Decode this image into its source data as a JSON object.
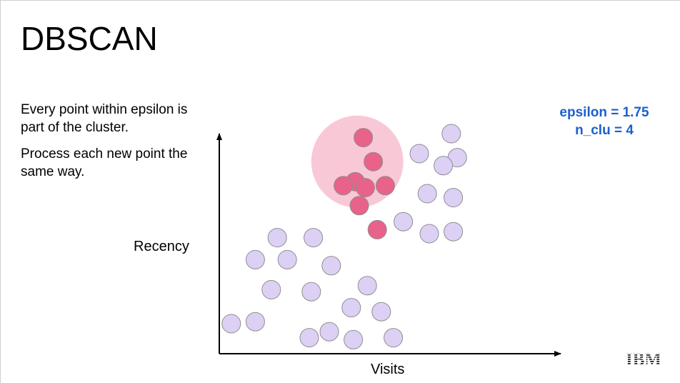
{
  "slide": {
    "title": "DBSCAN",
    "body": {
      "line1": "Every point within epsilon is part of the cluster.",
      "line2": "Process each new point the same way."
    },
    "params": {
      "epsilon": "epsilon = 1.75",
      "n_clu": "n_clu = 4"
    },
    "logo_text": "IBM"
  },
  "chart_data": {
    "type": "scatter",
    "xlabel": "Visits",
    "ylabel": "Recency",
    "colors": {
      "cluster_point": "#e9628a",
      "unclustered_point": "#ddd0f5",
      "point_stroke": "#8e8e8e",
      "epsilon_circle": "#f9c8d7",
      "axis": "#000000"
    },
    "epsilon_region": {
      "x": 3.45,
      "y": 4.8,
      "r": 1.15
    },
    "cluster_points": [
      {
        "x": 3.6,
        "y": 5.4
      },
      {
        "x": 3.85,
        "y": 4.8
      },
      {
        "x": 3.4,
        "y": 4.3
      },
      {
        "x": 3.1,
        "y": 4.2
      },
      {
        "x": 3.65,
        "y": 4.15
      },
      {
        "x": 4.15,
        "y": 4.2
      },
      {
        "x": 3.5,
        "y": 3.7
      },
      {
        "x": 3.95,
        "y": 3.1
      }
    ],
    "unclustered_points": [
      {
        "x": 5.8,
        "y": 5.5
      },
      {
        "x": 5.0,
        "y": 5.0
      },
      {
        "x": 5.95,
        "y": 4.9
      },
      {
        "x": 5.6,
        "y": 4.7
      },
      {
        "x": 5.2,
        "y": 4.0
      },
      {
        "x": 5.85,
        "y": 3.9
      },
      {
        "x": 4.6,
        "y": 3.3
      },
      {
        "x": 5.25,
        "y": 3.0
      },
      {
        "x": 5.85,
        "y": 3.05
      },
      {
        "x": 1.45,
        "y": 2.9
      },
      {
        "x": 2.35,
        "y": 2.9
      },
      {
        "x": 0.9,
        "y": 2.35
      },
      {
        "x": 1.7,
        "y": 2.35
      },
      {
        "x": 2.8,
        "y": 2.2
      },
      {
        "x": 1.3,
        "y": 1.6
      },
      {
        "x": 2.3,
        "y": 1.55
      },
      {
        "x": 3.7,
        "y": 1.7
      },
      {
        "x": 3.3,
        "y": 1.15
      },
      {
        "x": 4.05,
        "y": 1.05
      },
      {
        "x": 0.3,
        "y": 0.75
      },
      {
        "x": 0.9,
        "y": 0.8
      },
      {
        "x": 2.25,
        "y": 0.4
      },
      {
        "x": 2.75,
        "y": 0.55
      },
      {
        "x": 3.35,
        "y": 0.35
      },
      {
        "x": 4.35,
        "y": 0.4
      }
    ]
  }
}
